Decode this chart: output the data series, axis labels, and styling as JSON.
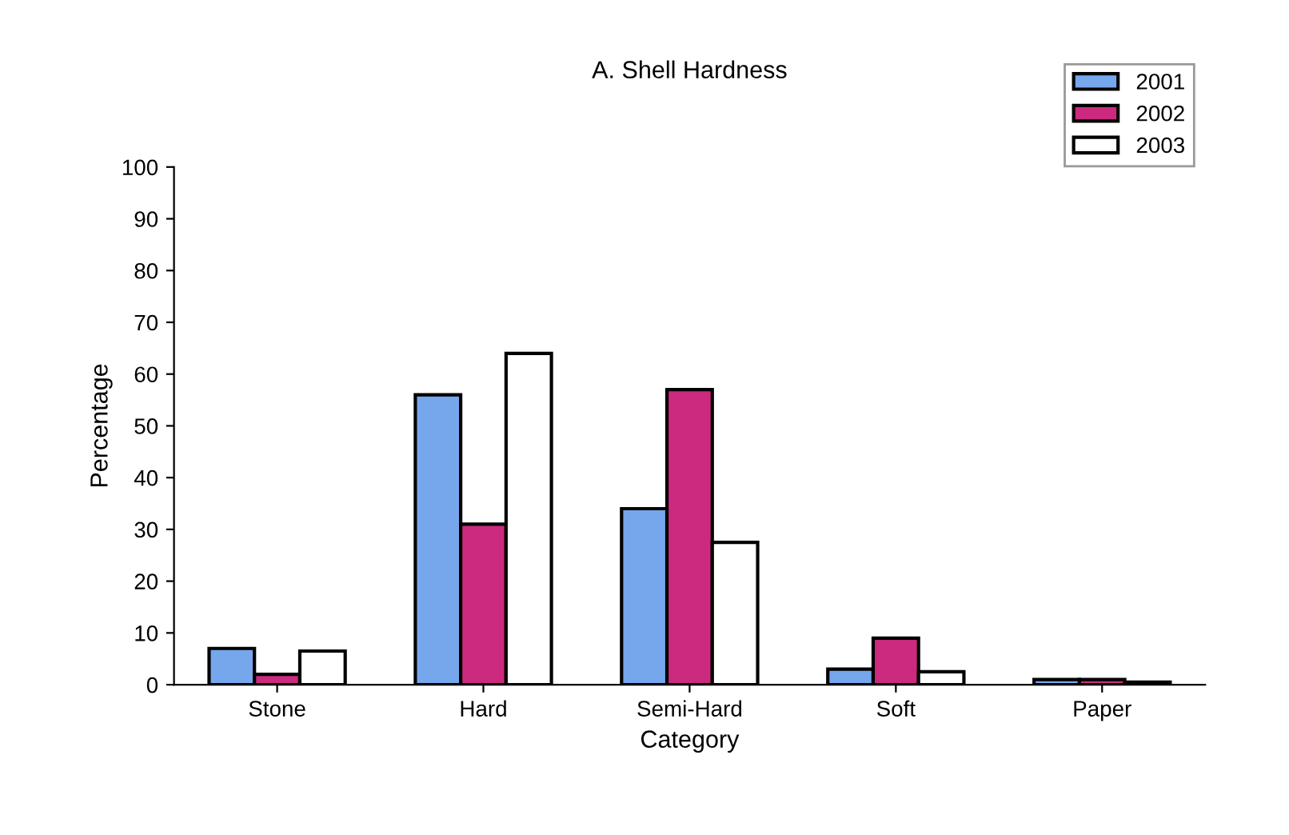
{
  "chart_data": {
    "type": "bar",
    "title": "A. Shell Hardness",
    "xlabel": "Category",
    "ylabel": "Percentage",
    "categories": [
      "Stone",
      "Hard",
      "Semi-Hard",
      "Soft",
      "Paper"
    ],
    "series": [
      {
        "name": "2001",
        "color": "#76a7ec",
        "values": [
          7,
          56,
          34,
          3,
          1
        ]
      },
      {
        "name": "2002",
        "color": "#cc2a7e",
        "values": [
          2,
          31,
          57,
          9,
          1
        ]
      },
      {
        "name": "2003",
        "color": "#ffffff",
        "values": [
          6.5,
          64,
          27.5,
          2.5,
          0.5
        ]
      }
    ],
    "ylim": [
      0,
      100
    ],
    "yticks": [
      0,
      10,
      20,
      30,
      40,
      50,
      60,
      70,
      80,
      90,
      100
    ],
    "grid": false,
    "legend": "top right"
  }
}
